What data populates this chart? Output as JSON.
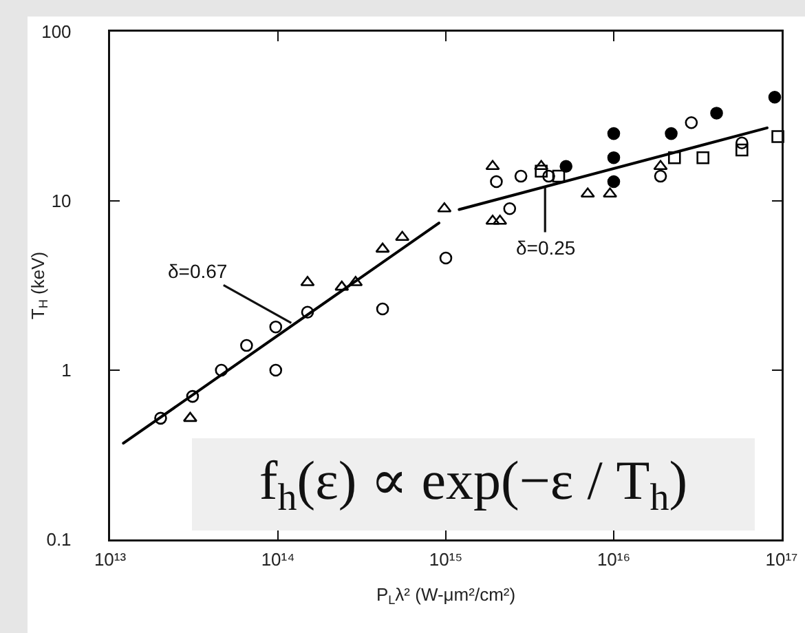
{
  "chart_data": {
    "type": "scatter",
    "xlabel": "P$_{L}$λ² (W-μm²/cm²)",
    "ylabel": "T$_{H}$ (keV)",
    "log": "xy",
    "xlim": [
      10000000000000.0,
      1e+17
    ],
    "ylim": [
      0.1,
      100
    ],
    "xticks": [
      {
        "value": 10000000000000.0,
        "label": "10¹³"
      },
      {
        "value": 100000000000000.0,
        "label": "10¹⁴"
      },
      {
        "value": 1000000000000000.0,
        "label": "10¹⁵"
      },
      {
        "value": 1e+16,
        "label": "10¹⁶"
      },
      {
        "value": 1e+17,
        "label": "10¹⁷"
      }
    ],
    "yticks": [
      0.1,
      1,
      10,
      100
    ],
    "series": [
      {
        "marker": "circle-open",
        "color": "#000000",
        "x": [
          20000000000000.0,
          31000000000000.0,
          46000000000000.0,
          65000000000000.0,
          97000000000000.0,
          97000000000000.0,
          150000000000000.0,
          420000000000000.0,
          1000000000000000.0,
          2400000000000000.0,
          2000000000000000.0,
          2800000000000000.0,
          4100000000000000.0,
          1.9e+16,
          2.9e+16,
          5.8e+16
        ],
        "values": [
          0.52,
          0.7,
          1.0,
          1.4,
          1.8,
          1.0,
          2.2,
          2.3,
          4.6,
          9.0,
          13,
          14,
          14,
          14,
          29,
          22
        ]
      },
      {
        "marker": "triangle-open",
        "color": "#000000",
        "x": [
          30000000000000.0,
          150000000000000.0,
          240000000000000.0,
          290000000000000.0,
          420000000000000.0,
          550000000000000.0,
          980000000000000.0,
          1900000000000000.0,
          2100000000000000.0,
          1900000000000000.0,
          3700000000000000.0,
          7000000000000000.0,
          9500000000000000.0,
          1.9e+16
        ],
        "values": [
          0.52,
          3.3,
          3.1,
          3.3,
          5.2,
          6.1,
          9.0,
          7.6,
          7.6,
          16,
          16,
          11,
          11,
          16
        ]
      },
      {
        "marker": "square-open",
        "color": "#000000",
        "x": [
          3700000000000000.0,
          4700000000000000.0,
          2.3e+16,
          3.4e+16,
          5.8e+16,
          9.5e+16
        ],
        "values": [
          15,
          14,
          18,
          18,
          20,
          24
        ]
      },
      {
        "marker": "circle",
        "color": "#000000",
        "x": [
          5200000000000000.0,
          1e+16,
          1e+16,
          1e+16,
          2.2e+16,
          4.1e+16,
          9.1e+16
        ],
        "values": [
          16,
          25,
          18,
          13,
          25,
          33,
          41
        ]
      },
      {
        "type": "line",
        "marker": "none",
        "line_style": "solid",
        "color": "#000000",
        "x": [
          12000000000000.0,
          910000000000000.0
        ],
        "values": [
          0.37,
          7.4
        ]
      },
      {
        "type": "line",
        "marker": "none",
        "line_style": "solid",
        "color": "#000000",
        "x": [
          1200000000000000.0,
          8.2e+16
        ],
        "values": [
          8.9,
          27
        ]
      }
    ],
    "annotations": [
      {
        "text": "δ=0.67",
        "x": 120000000000000.0,
        "y": 1.9
      },
      {
        "text": "δ=0.25",
        "x": 3900000000000000.0,
        "y": 12
      },
      "f$_{h}$(ε) ∝ exp(−ε / T$_{h}$)"
    ]
  }
}
